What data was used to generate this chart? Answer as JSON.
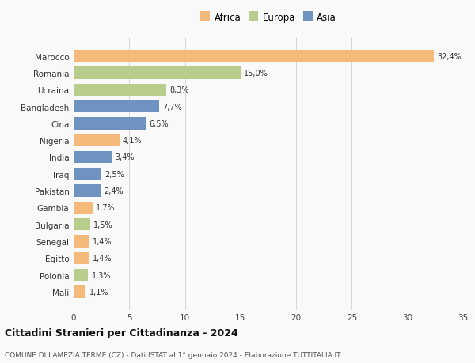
{
  "categories": [
    "Mali",
    "Polonia",
    "Egitto",
    "Senegal",
    "Bulgaria",
    "Gambia",
    "Pakistan",
    "Iraq",
    "India",
    "Nigeria",
    "Cina",
    "Bangladesh",
    "Ucraina",
    "Romania",
    "Marocco"
  ],
  "values": [
    1.1,
    1.3,
    1.4,
    1.4,
    1.5,
    1.7,
    2.4,
    2.5,
    3.4,
    4.1,
    6.5,
    7.7,
    8.3,
    15.0,
    32.4
  ],
  "colors": [
    "#f5b97a",
    "#b8cc8c",
    "#f5b97a",
    "#f5b97a",
    "#b8cc8c",
    "#f5b97a",
    "#7092c0",
    "#7092c0",
    "#7092c0",
    "#f5b97a",
    "#7092c0",
    "#7092c0",
    "#b8cc8c",
    "#b8cc8c",
    "#f5b97a"
  ],
  "labels": [
    "1,1%",
    "1,3%",
    "1,4%",
    "1,4%",
    "1,5%",
    "1,7%",
    "2,4%",
    "2,5%",
    "3,4%",
    "4,1%",
    "6,5%",
    "7,7%",
    "8,3%",
    "15,0%",
    "32,4%"
  ],
  "legend": [
    {
      "label": "Africa",
      "color": "#f5b97a"
    },
    {
      "label": "Europa",
      "color": "#b8cc8c"
    },
    {
      "label": "Asia",
      "color": "#7092c0"
    }
  ],
  "xlim": [
    0,
    35
  ],
  "xticks": [
    0,
    5,
    10,
    15,
    20,
    25,
    30,
    35
  ],
  "title": "Cittadini Stranieri per Cittadinanza - 2024",
  "subtitle": "COMUNE DI LAMEZIA TERME (CZ) - Dati ISTAT al 1° gennaio 2024 - Elaborazione TUTTITALIA.IT",
  "background_color": "#f9f9f9",
  "grid_color": "#d0d0d0"
}
